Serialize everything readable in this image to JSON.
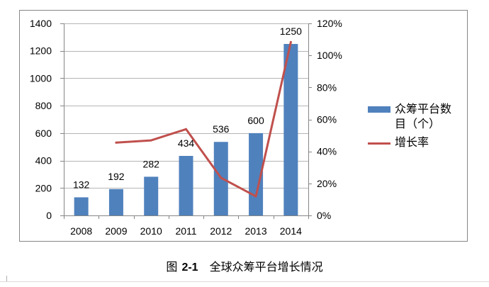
{
  "chart_data": {
    "type": "bar",
    "categories": [
      "2008",
      "2009",
      "2010",
      "2011",
      "2012",
      "2013",
      "2014"
    ],
    "series": [
      {
        "name": "众筹平台数目（个）",
        "type": "bar",
        "axis": "left",
        "values": [
          132,
          192,
          282,
          434,
          536,
          600,
          1250
        ],
        "show_data_labels": true,
        "color": "#4F81BD"
      },
      {
        "name": "增长率",
        "type": "line",
        "axis": "right",
        "values": [
          null,
          45.5,
          46.9,
          53.9,
          23.5,
          11.9,
          108.3
        ],
        "color": "#C0504D"
      }
    ],
    "left_axis": {
      "ylim": [
        0,
        1400
      ],
      "ticks": [
        0,
        200,
        400,
        600,
        800,
        1000,
        1200,
        1400
      ],
      "tick_labels": [
        "0",
        "200",
        "400",
        "600",
        "800",
        "1000",
        "1200",
        "1400"
      ]
    },
    "right_axis": {
      "ylim": [
        0,
        120
      ],
      "ticks": [
        0,
        20,
        40,
        60,
        80,
        100,
        120
      ],
      "tick_labels": [
        "0%",
        "20%",
        "40%",
        "60%",
        "80%",
        "100%",
        "120%"
      ]
    },
    "grid": true,
    "legend_position": "right"
  },
  "caption": {
    "prefix": "图",
    "number": "2-1",
    "title": "全球众筹平台增长情况"
  }
}
